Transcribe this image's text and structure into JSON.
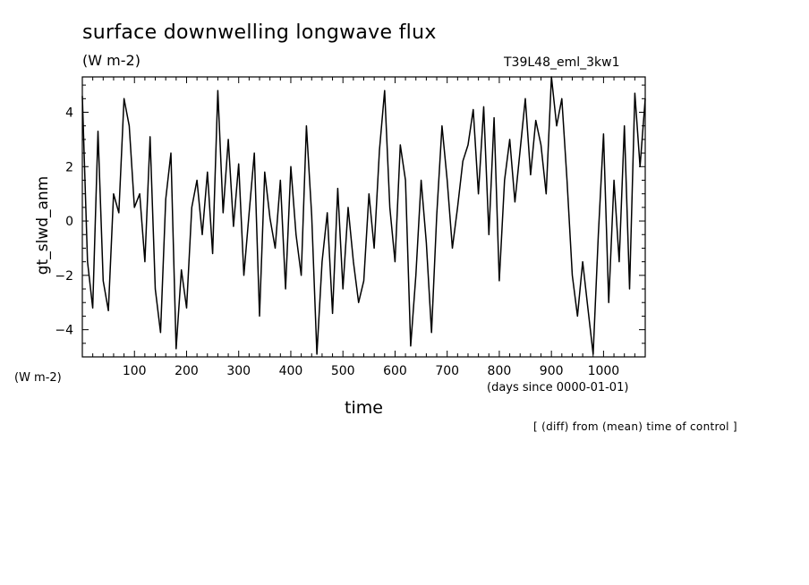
{
  "chart_data": {
    "type": "line",
    "title": "surface downwelling longwave flux",
    "units": "(W m-2)",
    "units_bottom": "(W m-2)",
    "run_label": "T39L48_eml_3kw1",
    "xlabel": "time",
    "x_units": "(days since 0000-01-01)",
    "ylabel": "gt_slwd_anm",
    "note": "[ (diff) from (mean) time of control ]",
    "xlim": [
      0,
      1080
    ],
    "ylim": [
      -5.0,
      5.3
    ],
    "xticks": [
      100,
      200,
      300,
      400,
      500,
      600,
      700,
      800,
      900,
      1000
    ],
    "yticks": [
      -4,
      -2,
      0,
      2,
      4
    ],
    "grid": false,
    "series": [
      {
        "color": "#000000",
        "x": [
          0,
          10,
          20,
          30,
          40,
          50,
          60,
          70,
          80,
          90,
          100,
          110,
          120,
          130,
          140,
          150,
          160,
          170,
          180,
          190,
          200,
          210,
          220,
          230,
          240,
          250,
          260,
          270,
          280,
          290,
          300,
          310,
          320,
          330,
          340,
          350,
          360,
          370,
          380,
          390,
          400,
          410,
          420,
          430,
          440,
          450,
          460,
          470,
          480,
          490,
          500,
          510,
          520,
          530,
          540,
          550,
          560,
          570,
          580,
          590,
          600,
          610,
          620,
          630,
          640,
          650,
          660,
          670,
          680,
          690,
          700,
          710,
          720,
          730,
          740,
          750,
          760,
          770,
          780,
          790,
          800,
          810,
          820,
          830,
          840,
          850,
          860,
          870,
          880,
          890,
          900,
          910,
          920,
          930,
          940,
          950,
          960,
          970,
          980,
          990,
          1000,
          1010,
          1020,
          1030,
          1040,
          1050,
          1060,
          1070,
          1080
        ],
        "values": [
          4.6,
          -1.5,
          -3.2,
          3.3,
          -2.2,
          -3.3,
          1.0,
          0.3,
          4.5,
          3.5,
          0.5,
          1.0,
          -1.5,
          3.1,
          -2.5,
          -4.1,
          0.8,
          2.5,
          -4.7,
          -1.8,
          -3.2,
          0.5,
          1.5,
          -0.5,
          1.8,
          -1.2,
          4.8,
          0.3,
          3.0,
          -0.2,
          2.1,
          -2.0,
          0.3,
          2.5,
          -3.5,
          1.8,
          0.1,
          -1.0,
          1.5,
          -2.5,
          2.0,
          -0.5,
          -2.0,
          3.5,
          0.2,
          -4.9,
          -1.5,
          0.3,
          -3.4,
          1.2,
          -2.5,
          0.5,
          -1.5,
          -3.0,
          -2.2,
          1.0,
          -1.0,
          2.6,
          4.8,
          0.5,
          -1.5,
          2.8,
          1.5,
          -4.6,
          -2.0,
          1.5,
          -0.8,
          -4.1,
          0.2,
          3.5,
          1.5,
          -1.0,
          0.5,
          2.2,
          2.8,
          4.1,
          1.0,
          4.2,
          -0.5,
          3.8,
          -2.2,
          1.5,
          3.0,
          0.7,
          2.6,
          4.5,
          1.7,
          3.7,
          2.8,
          1.0,
          5.3,
          3.5,
          4.5,
          1.5,
          -2.0,
          -3.5,
          -1.5,
          -3.2,
          -4.9,
          -0.5,
          3.2,
          -3.0,
          1.5,
          -1.5,
          3.5,
          -2.5,
          4.7,
          2.0,
          4.5
        ]
      }
    ]
  }
}
